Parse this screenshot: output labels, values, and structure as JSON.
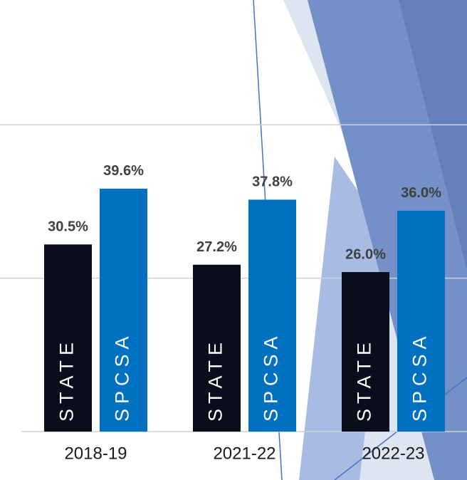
{
  "chart_data": {
    "type": "bar",
    "categories": [
      "2018-19",
      "2021-22",
      "2022-23"
    ],
    "series": [
      {
        "name": "STATE",
        "color": "#0a0e1c",
        "values": [
          30.5,
          27.2,
          26.0
        ],
        "value_labels": [
          "30.5%",
          "27.2%",
          "26.0%"
        ]
      },
      {
        "name": "SPCSA",
        "color": "#0070c0",
        "values": [
          39.6,
          37.8,
          36.0
        ],
        "value_labels": [
          "39.6%",
          "37.8%",
          "36.0%"
        ]
      }
    ],
    "ylim": [
      0,
      70
    ],
    "yticks": [
      0,
      25,
      50
    ],
    "grid": true
  }
}
